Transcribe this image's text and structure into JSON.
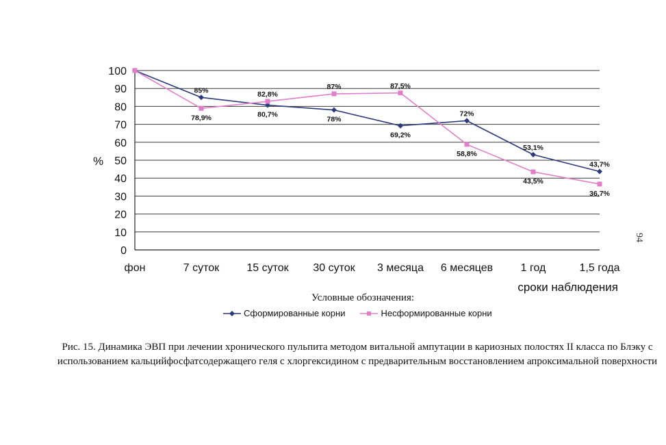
{
  "chart_data": {
    "type": "line",
    "categories": [
      "фон",
      "7 суток",
      "15 суток",
      "30 суток",
      "3 месяца",
      "6 месяцев",
      "1 год",
      "1,5 года"
    ],
    "series": [
      {
        "name": "Сформированные корни",
        "color": "#2b3a7a",
        "marker": "diamond",
        "values": [
          100,
          85,
          80.7,
          78,
          69.2,
          72,
          53.1,
          43.7
        ],
        "labels": [
          "",
          "85%",
          "80,7%",
          "78%",
          "69,2%",
          "72%",
          "53,1%",
          "43,7%"
        ]
      },
      {
        "name": "Несформированные корни",
        "color": "#e07ec9",
        "marker": "square",
        "values": [
          100,
          78.9,
          82.8,
          87,
          87.5,
          58.8,
          43.5,
          36.7
        ],
        "labels": [
          "",
          "78,9%",
          "82,8%",
          "87%",
          "87,5%",
          "58,8%",
          "43,5%",
          "36,7%"
        ]
      }
    ],
    "yticks": [
      0,
      10,
      20,
      30,
      40,
      50,
      60,
      70,
      80,
      90,
      100
    ],
    "ylim": [
      0,
      100
    ],
    "ylabel": "%",
    "xlabel": "сроки наблюдения",
    "grid": true,
    "legend_title": "Условные обозначения:",
    "legend_position": "bottom"
  },
  "caption": "Рис. 15. Динамика ЭВП при лечении хронического пульпита методом витальной ампутации в кариозных полостях II класса по Блэку с использованием кальцийфосфатсодержащего геля с хлоргексидином с предварительным восстановлением апроксимальной поверхности",
  "page_number": "94"
}
